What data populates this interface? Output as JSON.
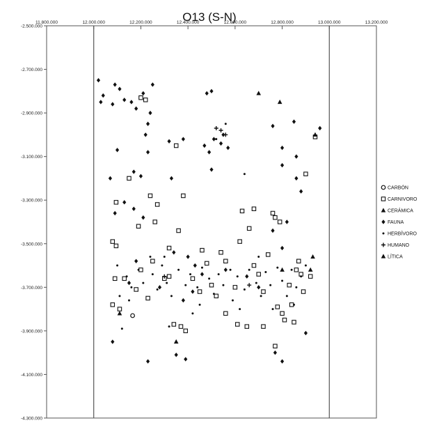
{
  "chart_data": {
    "type": "scatter",
    "title": "O13 (S-N)",
    "xlim": [
      11800000,
      13200000
    ],
    "ylim": [
      -4300000,
      -2500000
    ],
    "x_ticks": [
      "11.800.000",
      "12.000.000",
      "12.200.000",
      "12.400.000",
      "12.600.000",
      "12.800.000",
      "13.000.000",
      "13.200.000"
    ],
    "y_ticks": [
      "-2.500.000",
      "-2.700.000",
      "-2.900.000",
      "-3.100.000",
      "-3.300.000",
      "-3.500.000",
      "-3.700.000",
      "-3.900.000",
      "-4.100.000",
      "-4.300.000"
    ],
    "reference_lines_x": [
      12000000,
      13000000
    ],
    "legend_position": "right",
    "series": [
      {
        "name": "CARBÓN",
        "marker": "circle-open",
        "points": [
          [
            12165000,
            -3830000
          ]
        ]
      },
      {
        "name": "CARNIVORO",
        "marker": "square-open",
        "points": [
          [
            12080000,
            -3490000
          ],
          [
            12095000,
            -3510000
          ],
          [
            12090000,
            -3660000
          ],
          [
            12080000,
            -3780000
          ],
          [
            12095000,
            -3310000
          ],
          [
            12150000,
            -3200000
          ],
          [
            12190000,
            -3420000
          ],
          [
            12240000,
            -3280000
          ],
          [
            12270000,
            -3320000
          ],
          [
            12260000,
            -3400000
          ],
          [
            12300000,
            -3660000
          ],
          [
            12320000,
            -3520000
          ],
          [
            12350000,
            -3050000
          ],
          [
            12360000,
            -3440000
          ],
          [
            12380000,
            -3280000
          ],
          [
            12340000,
            -3870000
          ],
          [
            12370000,
            -3880000
          ],
          [
            12390000,
            -3900000
          ],
          [
            12420000,
            -3660000
          ],
          [
            12450000,
            -3720000
          ],
          [
            12460000,
            -3530000
          ],
          [
            12500000,
            -3690000
          ],
          [
            12540000,
            -3540000
          ],
          [
            12560000,
            -3580000
          ],
          [
            12600000,
            -3700000
          ],
          [
            12610000,
            -3870000
          ],
          [
            12620000,
            -3490000
          ],
          [
            12630000,
            -3350000
          ],
          [
            12650000,
            -3880000
          ],
          [
            12660000,
            -3430000
          ],
          [
            12680000,
            -3340000
          ],
          [
            12700000,
            -3640000
          ],
          [
            12720000,
            -3880000
          ],
          [
            12740000,
            -3550000
          ],
          [
            12760000,
            -3360000
          ],
          [
            12770000,
            -3380000
          ],
          [
            12780000,
            -3790000
          ],
          [
            12790000,
            -3400000
          ],
          [
            12800000,
            -3820000
          ],
          [
            12810000,
            -3850000
          ],
          [
            12830000,
            -3690000
          ],
          [
            12850000,
            -3860000
          ],
          [
            12860000,
            -3620000
          ],
          [
            12880000,
            -3640000
          ],
          [
            12890000,
            -3720000
          ],
          [
            12900000,
            -3180000
          ],
          [
            12920000,
            -3650000
          ],
          [
            12940000,
            -3010000
          ],
          [
            12770000,
            -3970000
          ],
          [
            12200000,
            -3620000
          ],
          [
            12230000,
            -3750000
          ],
          [
            12250000,
            -3580000
          ],
          [
            12180000,
            -3710000
          ],
          [
            12130000,
            -3660000
          ],
          [
            12110000,
            -3800000
          ],
          [
            12320000,
            -3650000
          ],
          [
            12480000,
            -3590000
          ],
          [
            12520000,
            -3740000
          ],
          [
            12560000,
            -3820000
          ],
          [
            12680000,
            -3600000
          ],
          [
            12720000,
            -3720000
          ],
          [
            12840000,
            -3780000
          ],
          [
            12870000,
            -3580000
          ],
          [
            12200000,
            -2830000
          ],
          [
            12220000,
            -2840000
          ]
        ]
      },
      {
        "name": "CERÁMICA",
        "marker": "triangle-filled",
        "points": [
          [
            12700000,
            -2810000
          ],
          [
            12790000,
            -2850000
          ],
          [
            12940000,
            -3000000
          ],
          [
            12930000,
            -3560000
          ],
          [
            12350000,
            -3950000
          ]
        ]
      },
      {
        "name": "FAUNA",
        "marker": "diamond-filled",
        "points": [
          [
            12020000,
            -2750000
          ],
          [
            12040000,
            -2820000
          ],
          [
            12030000,
            -2850000
          ],
          [
            12090000,
            -2770000
          ],
          [
            12110000,
            -2790000
          ],
          [
            12080000,
            -2860000
          ],
          [
            12130000,
            -2840000
          ],
          [
            12160000,
            -2850000
          ],
          [
            12180000,
            -2880000
          ],
          [
            12210000,
            -2810000
          ],
          [
            12250000,
            -2770000
          ],
          [
            12240000,
            -2900000
          ],
          [
            12230000,
            -2950000
          ],
          [
            12220000,
            -3000000
          ],
          [
            12230000,
            -3080000
          ],
          [
            12100000,
            -3070000
          ],
          [
            12070000,
            -3200000
          ],
          [
            12090000,
            -3360000
          ],
          [
            12130000,
            -3310000
          ],
          [
            12170000,
            -3170000
          ],
          [
            12200000,
            -3190000
          ],
          [
            12170000,
            -3340000
          ],
          [
            12210000,
            -3380000
          ],
          [
            12180000,
            -3580000
          ],
          [
            12330000,
            -3200000
          ],
          [
            12320000,
            -3030000
          ],
          [
            12380000,
            -3020000
          ],
          [
            12480000,
            -2810000
          ],
          [
            12500000,
            -2800000
          ],
          [
            12470000,
            -3050000
          ],
          [
            12490000,
            -3080000
          ],
          [
            12510000,
            -3020000
          ],
          [
            12550000,
            -3000000
          ],
          [
            12540000,
            -3040000
          ],
          [
            12570000,
            -3060000
          ],
          [
            12500000,
            -3160000
          ],
          [
            12760000,
            -2960000
          ],
          [
            12800000,
            -3060000
          ],
          [
            12850000,
            -2940000
          ],
          [
            12860000,
            -3100000
          ],
          [
            12800000,
            -3140000
          ],
          [
            12860000,
            -3200000
          ],
          [
            12960000,
            -2970000
          ],
          [
            12880000,
            -3260000
          ],
          [
            12820000,
            -3400000
          ],
          [
            12760000,
            -3440000
          ],
          [
            12800000,
            -3520000
          ],
          [
            12340000,
            -3540000
          ],
          [
            12400000,
            -3560000
          ],
          [
            12430000,
            -3600000
          ],
          [
            12280000,
            -3700000
          ],
          [
            12420000,
            -3720000
          ],
          [
            12460000,
            -3640000
          ],
          [
            12380000,
            -3760000
          ],
          [
            12350000,
            -4010000
          ],
          [
            12390000,
            -4030000
          ],
          [
            12230000,
            -4040000
          ],
          [
            12800000,
            -4040000
          ],
          [
            12770000,
            -4000000
          ],
          [
            12080000,
            -3950000
          ],
          [
            12900000,
            -3910000
          ],
          [
            12150000,
            -3680000
          ],
          [
            12560000,
            -3620000
          ],
          [
            12650000,
            -3650000
          ],
          [
            12700000,
            -3700000
          ]
        ]
      },
      {
        "name": "HERBÍVORO",
        "marker": "dot",
        "points": [
          [
            12100000,
            -3600000
          ],
          [
            12140000,
            -3650000
          ],
          [
            12160000,
            -3700000
          ],
          [
            12190000,
            -3620000
          ],
          [
            12210000,
            -3680000
          ],
          [
            12250000,
            -3640000
          ],
          [
            12270000,
            -3710000
          ],
          [
            12290000,
            -3600000
          ],
          [
            12310000,
            -3680000
          ],
          [
            12330000,
            -3740000
          ],
          [
            12360000,
            -3620000
          ],
          [
            12390000,
            -3690000
          ],
          [
            12410000,
            -3640000
          ],
          [
            12440000,
            -3700000
          ],
          [
            12460000,
            -3610000
          ],
          [
            12490000,
            -3660000
          ],
          [
            12510000,
            -3730000
          ],
          [
            12530000,
            -3640000
          ],
          [
            12550000,
            -3690000
          ],
          [
            12580000,
            -3620000
          ],
          [
            12590000,
            -3760000
          ],
          [
            12610000,
            -3650000
          ],
          [
            12640000,
            -3710000
          ],
          [
            12660000,
            -3620000
          ],
          [
            12690000,
            -3680000
          ],
          [
            12710000,
            -3740000
          ],
          [
            12730000,
            -3630000
          ],
          [
            12750000,
            -3690000
          ],
          [
            12780000,
            -3610000
          ],
          [
            12800000,
            -3670000
          ],
          [
            12820000,
            -3740000
          ],
          [
            12840000,
            -3620000
          ],
          [
            12860000,
            -3700000
          ],
          [
            12880000,
            -3650000
          ],
          [
            12900000,
            -3600000
          ],
          [
            12120000,
            -3890000
          ],
          [
            12110000,
            -3740000
          ],
          [
            12300000,
            -3560000
          ],
          [
            12450000,
            -3780000
          ],
          [
            12620000,
            -3800000
          ],
          [
            12700000,
            -3560000
          ],
          [
            12760000,
            -3800000
          ],
          [
            12850000,
            -3780000
          ],
          [
            12640000,
            -3180000
          ],
          [
            12560000,
            -2950000
          ],
          [
            12520000,
            -3020000
          ],
          [
            12320000,
            -3880000
          ],
          [
            12420000,
            -3820000
          ],
          [
            12150000,
            -3760000
          ],
          [
            12240000,
            -3560000
          ]
        ]
      },
      {
        "name": "HUMANO",
        "marker": "plus",
        "points": [
          [
            12540000,
            -2980000
          ],
          [
            12520000,
            -2970000
          ],
          [
            12560000,
            -3000000
          ],
          [
            12300000,
            -3650000
          ],
          [
            12660000,
            -3690000
          ]
        ]
      },
      {
        "name": "LÍTICA",
        "marker": "triangle-filled",
        "points": [
          [
            12920000,
            -3620000
          ],
          [
            12800000,
            -3620000
          ],
          [
            12110000,
            -3820000
          ]
        ]
      }
    ]
  }
}
